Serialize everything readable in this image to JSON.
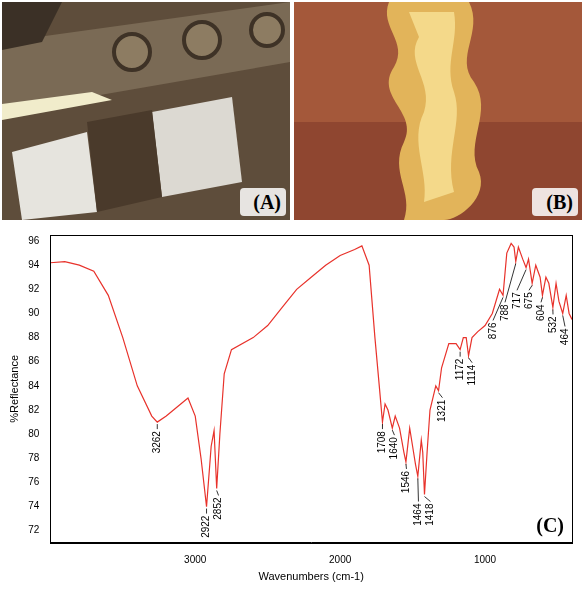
{
  "panels": [
    {
      "label": "(A)",
      "type": "photo"
    },
    {
      "label": "(B)",
      "type": "photo"
    }
  ],
  "chart_data": {
    "type": "line",
    "panel_label": "(C)",
    "x_label": "Wavenumbers (cm-1)",
    "y_label": "%Reflectance",
    "x": [
      4000,
      3900,
      3800,
      3700,
      3600,
      3500,
      3400,
      3300,
      3262,
      3200,
      3100,
      3050,
      3000,
      2960,
      2922,
      2890,
      2870,
      2852,
      2830,
      2800,
      2750,
      2600,
      2500,
      2400,
      2300,
      2200,
      2100,
      2000,
      1900,
      1850,
      1800,
      1760,
      1730,
      1708,
      1690,
      1670,
      1640,
      1620,
      1590,
      1560,
      1546,
      1520,
      1500,
      1480,
      1464,
      1440,
      1430,
      1418,
      1400,
      1380,
      1340,
      1321,
      1300,
      1250,
      1200,
      1172,
      1150,
      1130,
      1114,
      1090,
      1050,
      1000,
      950,
      900,
      876,
      850,
      820,
      800,
      788,
      770,
      740,
      717,
      700,
      675,
      650,
      620,
      604,
      580,
      560,
      532,
      510,
      490,
      464,
      440,
      420,
      400
    ],
    "values": [
      94.2,
      94.3,
      94.0,
      93.5,
      91.5,
      88,
      84,
      81.5,
      81,
      81.5,
      82.5,
      83,
      81.5,
      78,
      74,
      79,
      80.3,
      75.5,
      80,
      85,
      87,
      88,
      89,
      90.5,
      92,
      93,
      94,
      94.8,
      95.3,
      95.6,
      94,
      88,
      84,
      81,
      82.5,
      82,
      80.5,
      81.5,
      80.5,
      78.5,
      77.7,
      80.5,
      79,
      77.5,
      76.5,
      79.5,
      78.5,
      75,
      78.5,
      82,
      84,
      83.6,
      85.5,
      87.5,
      87.5,
      87,
      88,
      88,
      86.5,
      88,
      88.5,
      89,
      90,
      92,
      91.5,
      95,
      95.8,
      95.5,
      94.3,
      95.5,
      94.5,
      93.8,
      94.5,
      92.5,
      94,
      93,
      91.5,
      93,
      92.5,
      90.5,
      92.5,
      91,
      90,
      91.5,
      90,
      89.5
    ],
    "color": "#e8322b",
    "xlim": [
      4000,
      400
    ],
    "xticks": [
      3000,
      2000,
      1000
    ],
    "ylim": [
      71,
      96.5
    ],
    "yticks": [
      72,
      74,
      76,
      78,
      80,
      82,
      84,
      86,
      88,
      90,
      92,
      94,
      96
    ],
    "grid": false,
    "peak_labels": [
      3262,
      2922,
      2852,
      1708,
      1640,
      1546,
      1464,
      1418,
      1321,
      1172,
      1114,
      876,
      788,
      717,
      675,
      604,
      532,
      464
    ]
  }
}
